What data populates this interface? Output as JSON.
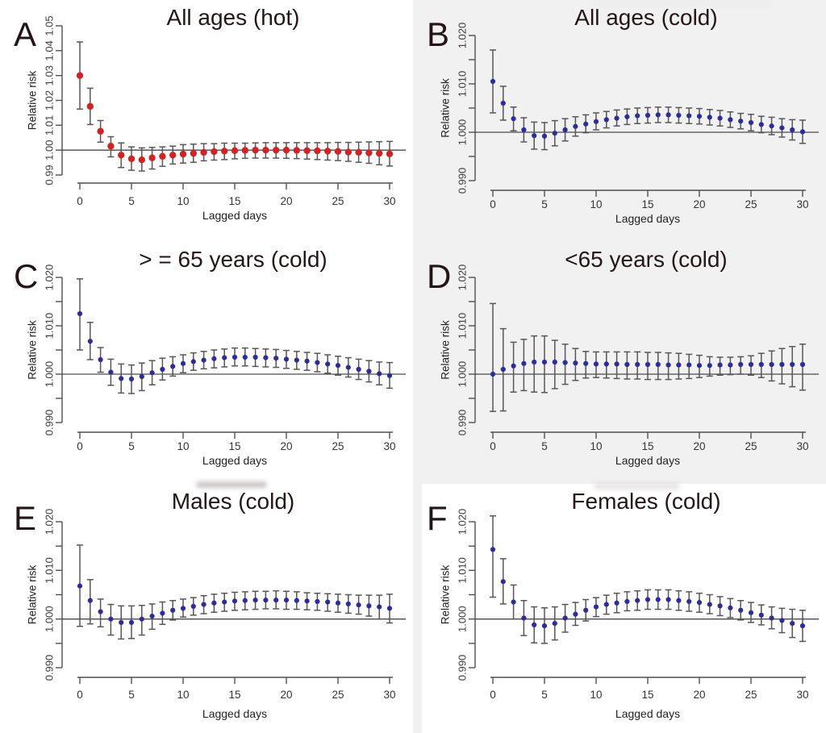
{
  "figure": {
    "xlabel": "Lagged days",
    "ylabel": "Relative risk",
    "lag_days": [
      0,
      1,
      2,
      3,
      4,
      5,
      6,
      7,
      8,
      9,
      10,
      11,
      12,
      13,
      14,
      15,
      16,
      17,
      18,
      19,
      20,
      21,
      22,
      23,
      24,
      25,
      26,
      27,
      28,
      29,
      30
    ],
    "colors": {
      "hot_point": "#d42222",
      "cold_point": "#2c2c9c",
      "error_bar": "#565656",
      "axis": "#4f4f4f",
      "ref_line": "#4a4a4a",
      "tick_text": "#3d3d3d",
      "title_text": "#241616",
      "gray_panel_bg": "#f1f1f1"
    }
  },
  "chart_data": [
    {
      "type": "scatter",
      "panel_letter": "A",
      "title": "All ages (hot)",
      "xlabel": "Lagged days",
      "ylabel": "Relative risk",
      "point_color_key": "hot_point",
      "ylim": [
        0.99,
        1.05
      ],
      "ref_line": 1.0,
      "legend": "none",
      "y_ticks": [
        {
          "value": 0.99,
          "label": "0.99"
        },
        {
          "value": 1.0,
          "label": "1.00"
        },
        {
          "value": 1.01,
          "label": "1.01"
        },
        {
          "value": 1.02,
          "label": "1.02"
        },
        {
          "value": 1.03,
          "label": "1.03"
        },
        {
          "value": 1.04,
          "label": "1.04"
        },
        {
          "value": 1.05,
          "label": "1.05"
        }
      ],
      "x_ticks": [
        {
          "value": 0,
          "label": "0"
        },
        {
          "value": 5,
          "label": "5"
        },
        {
          "value": 10,
          "label": "10"
        },
        {
          "value": 15,
          "label": "15"
        },
        {
          "value": 20,
          "label": "20"
        },
        {
          "value": 25,
          "label": "25"
        },
        {
          "value": 30,
          "label": "30"
        }
      ],
      "rr": [
        1.03,
        1.0176,
        1.0076,
        1.0016,
        0.998,
        0.9965,
        0.9961,
        0.9969,
        0.9975,
        0.998,
        0.9984,
        0.9987,
        0.9991,
        0.9994,
        0.9996,
        0.9998,
        0.9999,
        1.0,
        1.0,
        1.0,
        1.0,
        0.9999,
        0.9998,
        0.9997,
        0.9996,
        0.9995,
        0.9992,
        0.9991,
        0.9989,
        0.9987,
        0.9985
      ],
      "ci_low": [
        1.0165,
        1.0103,
        1.0032,
        0.9973,
        0.993,
        0.9919,
        0.9916,
        0.9924,
        0.9935,
        0.9944,
        0.9948,
        0.9951,
        0.9957,
        0.996,
        0.9962,
        0.9965,
        0.9967,
        0.9968,
        0.9968,
        0.9968,
        0.9967,
        0.9966,
        0.9964,
        0.9962,
        0.996,
        0.9958,
        0.9955,
        0.9951,
        0.9947,
        0.9941,
        0.9936
      ],
      "ci_high": [
        1.0435,
        1.0249,
        1.0119,
        1.0054,
        1.0029,
        1.0013,
        1.0009,
        1.0011,
        1.0013,
        1.0016,
        1.0022,
        1.0024,
        1.0026,
        1.0026,
        1.0028,
        1.0028,
        1.0028,
        1.0029,
        1.003,
        1.003,
        1.003,
        1.003,
        1.003,
        1.003,
        1.003,
        1.0031,
        1.0031,
        1.0032,
        1.0033,
        1.0034,
        1.0035
      ]
    },
    {
      "type": "scatter",
      "panel_letter": "B",
      "title": "All ages (cold)",
      "xlabel": "Lagged days",
      "ylabel": "Relative risk",
      "point_color_key": "cold_point",
      "ylim": [
        0.99,
        1.02
      ],
      "ref_line": 1.0,
      "legend": "none",
      "y_ticks": [
        {
          "value": 0.99,
          "label": "0.990"
        },
        {
          "value": 0.995,
          "label": ""
        },
        {
          "value": 1.0,
          "label": "1.000"
        },
        {
          "value": 1.005,
          "label": ""
        },
        {
          "value": 1.01,
          "label": "1.010"
        },
        {
          "value": 1.015,
          "label": ""
        },
        {
          "value": 1.02,
          "label": "1.020"
        }
      ],
      "x_ticks": [
        {
          "value": 0,
          "label": "0"
        },
        {
          "value": 5,
          "label": "5"
        },
        {
          "value": 10,
          "label": "10"
        },
        {
          "value": 15,
          "label": "15"
        },
        {
          "value": 20,
          "label": "20"
        },
        {
          "value": 25,
          "label": "25"
        },
        {
          "value": 30,
          "label": "30"
        }
      ],
      "rr": [
        1.0105,
        1.006,
        1.0028,
        1.0005,
        0.9993,
        0.9992,
        0.9998,
        1.0005,
        1.0012,
        1.0017,
        1.0022,
        1.0026,
        1.0029,
        1.0032,
        1.0034,
        1.0035,
        1.0036,
        1.0036,
        1.0035,
        1.0034,
        1.0033,
        1.0031,
        1.0029,
        1.0026,
        1.0023,
        1.002,
        1.0016,
        1.0013,
        1.0009,
        1.0005,
        1.0001
      ],
      "ci_low": [
        1.004,
        1.0025,
        1.0003,
        0.998,
        0.9965,
        0.9964,
        0.9972,
        0.9982,
        0.9992,
        0.9999,
        1.0005,
        1.0009,
        1.0013,
        1.0016,
        1.0018,
        1.0019,
        1.002,
        1.002,
        1.0019,
        1.0018,
        1.0017,
        1.0015,
        1.0013,
        1.001,
        1.0007,
        1.0003,
        0.9999,
        0.9995,
        0.999,
        0.9984,
        0.9977
      ],
      "ci_high": [
        1.017,
        1.0095,
        1.0052,
        1.003,
        1.0021,
        1.002,
        1.0024,
        1.0028,
        1.0032,
        1.0036,
        1.004,
        1.0043,
        1.0046,
        1.0048,
        1.005,
        1.0051,
        1.0052,
        1.0052,
        1.0051,
        1.005,
        1.0049,
        1.0047,
        1.0045,
        1.0042,
        1.0039,
        1.0037,
        1.0033,
        1.0031,
        1.0028,
        1.0026,
        1.0025
      ]
    },
    {
      "type": "scatter",
      "panel_letter": "C",
      "title": "> = 65 years (cold)",
      "xlabel": "Lagged days",
      "ylabel": "Relative risk",
      "point_color_key": "cold_point",
      "ylim": [
        0.99,
        1.02
      ],
      "ref_line": 1.0,
      "legend": "none",
      "y_ticks": [
        {
          "value": 0.99,
          "label": "0.990"
        },
        {
          "value": 0.995,
          "label": ""
        },
        {
          "value": 1.0,
          "label": "1.000"
        },
        {
          "value": 1.005,
          "label": ""
        },
        {
          "value": 1.01,
          "label": "1.010"
        },
        {
          "value": 1.015,
          "label": ""
        },
        {
          "value": 1.02,
          "label": "1.020"
        }
      ],
      "x_ticks": [
        {
          "value": 0,
          "label": "0"
        },
        {
          "value": 5,
          "label": "5"
        },
        {
          "value": 10,
          "label": "10"
        },
        {
          "value": 15,
          "label": "15"
        },
        {
          "value": 20,
          "label": "20"
        },
        {
          "value": 25,
          "label": "25"
        },
        {
          "value": 30,
          "label": "30"
        }
      ],
      "rr": [
        1.0125,
        1.0068,
        1.003,
        1.0004,
        0.9991,
        0.999,
        0.9995,
        1.0003,
        1.001,
        1.0016,
        1.0022,
        1.0026,
        1.0029,
        1.0032,
        1.0034,
        1.0035,
        1.0035,
        1.0035,
        1.0034,
        1.0033,
        1.0031,
        1.0029,
        1.0027,
        1.0024,
        1.0021,
        1.0018,
        1.0014,
        1.001,
        1.0006,
        1.0001,
        0.9997
      ],
      "ci_low": [
        1.005,
        1.003,
        1.0004,
        0.9977,
        0.9961,
        0.996,
        0.9966,
        0.9978,
        0.9988,
        0.9996,
        1.0003,
        1.0008,
        1.0011,
        1.0013,
        1.0015,
        1.0017,
        1.0017,
        1.0016,
        1.0015,
        1.0014,
        1.0012,
        1.001,
        1.0008,
        1.0005,
        1.0002,
        0.9998,
        0.9994,
        0.9989,
        0.9984,
        0.9978,
        0.9971
      ],
      "ci_high": [
        1.0197,
        1.0107,
        1.0055,
        1.0031,
        1.0021,
        1.0019,
        1.0023,
        1.0028,
        1.0033,
        1.0036,
        1.004,
        1.0044,
        1.0047,
        1.005,
        1.0052,
        1.0054,
        1.0054,
        1.0053,
        1.0052,
        1.0051,
        1.0049,
        1.0047,
        1.0045,
        1.0043,
        1.004,
        1.0037,
        1.0034,
        1.0031,
        1.0028,
        1.0025,
        1.0024
      ]
    },
    {
      "type": "scatter",
      "panel_letter": "D",
      "title": "<65 years (cold)",
      "xlabel": "Lagged days",
      "ylabel": "Relative risk",
      "point_color_key": "cold_point",
      "ylim": [
        0.99,
        1.02
      ],
      "ref_line": 1.0,
      "legend": "none",
      "y_ticks": [
        {
          "value": 0.99,
          "label": "0.990"
        },
        {
          "value": 0.995,
          "label": ""
        },
        {
          "value": 1.0,
          "label": "1.000"
        },
        {
          "value": 1.005,
          "label": ""
        },
        {
          "value": 1.01,
          "label": "1.010"
        },
        {
          "value": 1.015,
          "label": ""
        },
        {
          "value": 1.02,
          "label": "1.020"
        }
      ],
      "x_ticks": [
        {
          "value": 0,
          "label": "0"
        },
        {
          "value": 5,
          "label": "5"
        },
        {
          "value": 10,
          "label": "10"
        },
        {
          "value": 15,
          "label": "15"
        },
        {
          "value": 20,
          "label": "20"
        },
        {
          "value": 25,
          "label": "25"
        },
        {
          "value": 30,
          "label": "30"
        }
      ],
      "rr": [
        1.0,
        1.001,
        1.0017,
        1.0022,
        1.0025,
        1.0025,
        1.0025,
        1.0024,
        1.0023,
        1.0022,
        1.0021,
        1.0021,
        1.0021,
        1.002,
        1.002,
        1.002,
        1.002,
        1.0019,
        1.0019,
        1.0019,
        1.0018,
        1.0018,
        1.0019,
        1.0019,
        1.002,
        1.002,
        1.002,
        1.002,
        1.002,
        1.002,
        1.002
      ],
      "ci_low": [
        0.9923,
        0.9924,
        0.9963,
        0.9966,
        0.9963,
        0.9962,
        0.997,
        0.9979,
        0.9987,
        0.9992,
        0.9993,
        0.9992,
        0.9991,
        0.999,
        0.999,
        0.9989,
        0.9989,
        0.9989,
        0.999,
        0.9991,
        0.9993,
        0.9996,
        0.9998,
        0.9999,
        1.0,
        0.9998,
        0.9993,
        0.9986,
        0.998,
        0.9974,
        0.9967
      ],
      "ci_high": [
        1.0146,
        1.0094,
        1.0066,
        1.0072,
        1.0079,
        1.0079,
        1.007,
        1.0062,
        1.0053,
        1.0047,
        1.0046,
        1.0046,
        1.0046,
        1.0046,
        1.0046,
        1.0045,
        1.0045,
        1.0044,
        1.0043,
        1.0041,
        1.0039,
        1.0036,
        1.0035,
        1.0035,
        1.0036,
        1.0038,
        1.0043,
        1.0048,
        1.0053,
        1.0057,
        1.0062
      ]
    },
    {
      "type": "scatter",
      "panel_letter": "E",
      "title": "Males (cold)",
      "xlabel": "Lagged days",
      "ylabel": "Relative risk",
      "point_color_key": "cold_point",
      "ylim": [
        0.99,
        1.02
      ],
      "ref_line": 1.0,
      "legend": "none",
      "y_ticks": [
        {
          "value": 0.99,
          "label": "0.990"
        },
        {
          "value": 0.995,
          "label": ""
        },
        {
          "value": 1.0,
          "label": "1.000"
        },
        {
          "value": 1.005,
          "label": ""
        },
        {
          "value": 1.01,
          "label": "1.010"
        },
        {
          "value": 1.015,
          "label": ""
        },
        {
          "value": 1.02,
          "label": "1.020"
        }
      ],
      "x_ticks": [
        {
          "value": 0,
          "label": "0"
        },
        {
          "value": 5,
          "label": "5"
        },
        {
          "value": 10,
          "label": "10"
        },
        {
          "value": 15,
          "label": "15"
        },
        {
          "value": 20,
          "label": "20"
        },
        {
          "value": 25,
          "label": "25"
        },
        {
          "value": 30,
          "label": "30"
        }
      ],
      "rr": [
        1.0068,
        1.0038,
        1.0015,
        1.0,
        0.9993,
        0.9993,
        1.0,
        1.0006,
        1.0012,
        1.0018,
        1.0022,
        1.0026,
        1.003,
        1.0033,
        1.0035,
        1.0037,
        1.0038,
        1.0039,
        1.0039,
        1.0039,
        1.0039,
        1.0038,
        1.0037,
        1.0036,
        1.0035,
        1.0033,
        1.0031,
        1.0029,
        1.0027,
        1.0025,
        1.0022
      ],
      "ci_low": [
        0.9985,
        0.999,
        0.9984,
        0.9967,
        0.9959,
        0.996,
        0.9967,
        0.9979,
        0.9989,
        0.9998,
        1.0004,
        1.0008,
        1.0011,
        1.0014,
        1.0016,
        1.0018,
        1.0019,
        1.002,
        1.0021,
        1.0021,
        1.002,
        1.002,
        1.0019,
        1.0018,
        1.0016,
        1.0014,
        1.0012,
        1.001,
        1.0006,
        1.0,
        0.9992
      ],
      "ci_high": [
        1.0152,
        1.0081,
        1.0041,
        1.003,
        1.0027,
        1.0027,
        1.0028,
        1.0031,
        1.0035,
        1.0038,
        1.0041,
        1.0044,
        1.0048,
        1.0051,
        1.0053,
        1.0055,
        1.0056,
        1.0057,
        1.0057,
        1.0058,
        1.0057,
        1.0056,
        1.0054,
        1.0053,
        1.0052,
        1.0051,
        1.005,
        1.0049,
        1.0049,
        1.0049,
        1.0051
      ]
    },
    {
      "type": "scatter",
      "panel_letter": "F",
      "title": "Females (cold)",
      "xlabel": "Lagged days",
      "ylabel": "Relative risk",
      "point_color_key": "cold_point",
      "ylim": [
        0.99,
        1.02
      ],
      "ref_line": 1.0,
      "legend": "none",
      "y_ticks": [
        {
          "value": 0.99,
          "label": "0.990"
        },
        {
          "value": 0.995,
          "label": ""
        },
        {
          "value": 1.0,
          "label": "1.000"
        },
        {
          "value": 1.005,
          "label": ""
        },
        {
          "value": 1.01,
          "label": "1.010"
        },
        {
          "value": 1.015,
          "label": ""
        },
        {
          "value": 1.02,
          "label": "1.020"
        }
      ],
      "x_ticks": [
        {
          "value": 0,
          "label": "0"
        },
        {
          "value": 5,
          "label": "5"
        },
        {
          "value": 10,
          "label": "10"
        },
        {
          "value": 15,
          "label": "15"
        },
        {
          "value": 20,
          "label": "20"
        },
        {
          "value": 25,
          "label": "25"
        },
        {
          "value": 30,
          "label": "30"
        }
      ],
      "rr": [
        1.0143,
        1.0077,
        1.0035,
        1.0002,
        0.9988,
        0.9986,
        0.9991,
        1.0002,
        1.001,
        1.0018,
        1.0025,
        1.003,
        1.0033,
        1.0036,
        1.0038,
        1.004,
        1.004,
        1.004,
        1.0038,
        1.0036,
        1.0034,
        1.003,
        1.0027,
        1.0023,
        1.0018,
        1.0013,
        1.0008,
        1.0002,
        0.9997,
        0.9991,
        0.9986
      ],
      "ci_low": [
        1.0045,
        1.0031,
        1.0,
        0.9966,
        0.9951,
        0.995,
        0.9957,
        0.9973,
        0.9987,
        0.9996,
        1.0005,
        1.001,
        1.0013,
        1.0017,
        1.0018,
        1.002,
        1.002,
        1.002,
        1.0018,
        1.0016,
        1.0014,
        1.0011,
        1.0007,
        1.0003,
        0.9998,
        0.9993,
        0.9988,
        0.998,
        0.9972,
        0.9962,
        0.9954
      ],
      "ci_high": [
        1.0212,
        1.0124,
        1.007,
        1.0038,
        1.0025,
        1.0023,
        1.0025,
        1.003,
        1.0034,
        1.004,
        1.0044,
        1.0049,
        1.0053,
        1.0056,
        1.0058,
        1.006,
        1.006,
        1.006,
        1.0058,
        1.0056,
        1.0053,
        1.005,
        1.0046,
        1.0042,
        1.0038,
        1.0034,
        1.0029,
        1.0025,
        1.0022,
        1.002,
        1.0018
      ]
    }
  ]
}
